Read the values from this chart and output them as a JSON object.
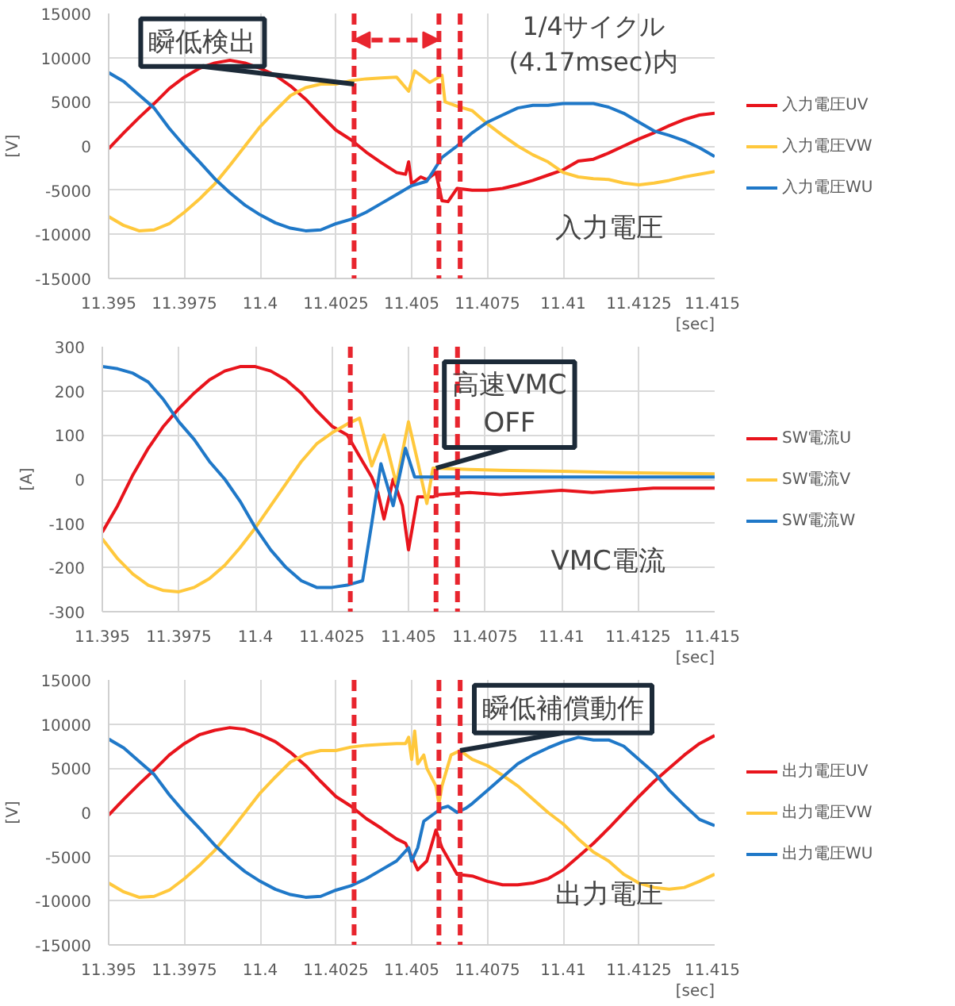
{
  "chart_data": [
    {
      "type": "line",
      "xlim": [
        11.395,
        11.415
      ],
      "ylim": [
        -15000,
        15000
      ],
      "xticks": [
        11.395,
        11.3975,
        11.4,
        11.4025,
        11.405,
        11.4075,
        11.41,
        11.4125,
        11.415
      ],
      "yticks": [
        -15000,
        -10000,
        -5000,
        0,
        5000,
        10000,
        15000
      ],
      "xlabel": "[sec]",
      "ylabel": "[V]",
      "grid": true,
      "legend": "right",
      "x": [
        11.395,
        11.3955,
        11.396,
        11.3965,
        11.397,
        11.3975,
        11.398,
        11.3985,
        11.399,
        11.3995,
        11.4,
        11.4005,
        11.401,
        11.4015,
        11.402,
        11.4025,
        11.403,
        11.4035,
        11.404,
        11.4045,
        11.405,
        11.4055,
        11.406,
        11.4065,
        11.407,
        11.4075,
        11.408,
        11.4085,
        11.409,
        11.4095,
        11.41,
        11.4105,
        11.411,
        11.4115,
        11.412,
        11.4125,
        11.413,
        11.4135,
        11.414,
        11.4145,
        11.415
      ],
      "series": [
        {
          "name": "入力電圧UV",
          "color": "#e8141c",
          "x": [
            11.395,
            11.3955,
            11.396,
            11.3965,
            11.397,
            11.3975,
            11.398,
            11.3985,
            11.399,
            11.3995,
            11.4,
            11.4005,
            11.401,
            11.4015,
            11.402,
            11.4025,
            11.403,
            11.4035,
            11.404,
            11.4045,
            11.4048,
            11.4049,
            11.405,
            11.4053,
            11.4055,
            11.4058,
            11.406,
            11.4062,
            11.4065,
            11.407,
            11.4075,
            11.408,
            11.4085,
            11.409,
            11.4095,
            11.41,
            11.4105,
            11.411,
            11.4115,
            11.412,
            11.4125,
            11.413,
            11.4135,
            11.414,
            11.4145,
            11.415
          ],
          "values": [
            -300,
            1500,
            3200,
            4800,
            6500,
            7800,
            8800,
            9400,
            9700,
            9400,
            8800,
            8000,
            6800,
            5300,
            3500,
            1800,
            700,
            -700,
            -1900,
            -3000,
            -3200,
            -1800,
            -4300,
            -3500,
            -3800,
            -3000,
            -6200,
            -6300,
            -4800,
            -5000,
            -5000,
            -4800,
            -4400,
            -3900,
            -3300,
            -2700,
            -1700,
            -1500,
            -800,
            0,
            800,
            1500,
            2300,
            3000,
            3500,
            3700
          ]
        },
        {
          "name": "入力電圧VW",
          "color": "#ffc83c",
          "x": [
            11.395,
            11.3955,
            11.396,
            11.3965,
            11.397,
            11.3975,
            11.398,
            11.3985,
            11.399,
            11.3995,
            11.4,
            11.4005,
            11.401,
            11.4015,
            11.402,
            11.4025,
            11.403,
            11.4035,
            11.404,
            11.4045,
            11.4049,
            11.4051,
            11.4053,
            11.4056,
            11.4058,
            11.406,
            11.4061,
            11.4065,
            11.407,
            11.4075,
            11.408,
            11.4085,
            11.409,
            11.4095,
            11.41,
            11.4105,
            11.411,
            11.4115,
            11.412,
            11.4125,
            11.413,
            11.4135,
            11.414,
            11.415
          ],
          "values": [
            -8000,
            -9000,
            -9600,
            -9500,
            -8800,
            -7500,
            -6000,
            -4300,
            -2200,
            0,
            2200,
            4000,
            5700,
            6600,
            7000,
            7000,
            7400,
            7600,
            7700,
            7800,
            6200,
            8500,
            8000,
            7200,
            7600,
            8000,
            5000,
            4500,
            4000,
            2500,
            1200,
            0,
            -1000,
            -1800,
            -3000,
            -3500,
            -3700,
            -3800,
            -4200,
            -4400,
            -4200,
            -3900,
            -3500,
            -2900
          ]
        },
        {
          "name": "入力電圧WU",
          "color": "#1f78c8",
          "values": [
            8300,
            7300,
            5800,
            4300,
            2000,
            0,
            -1800,
            -3700,
            -5300,
            -6700,
            -7800,
            -8700,
            -9300,
            -9600,
            -9500,
            -8800,
            -8300,
            -7500,
            -6500,
            -5500,
            -4500,
            -4000,
            -1300,
            0,
            1500,
            2700,
            3500,
            4300,
            4600,
            4600,
            4800,
            4800,
            4800,
            4400,
            3700,
            2700,
            1700,
            1200,
            600,
            -200,
            -1200
          ]
        }
      ],
      "ref_lines": [
        {
          "axis": "x",
          "value": 11.4031,
          "color": "#e8252e",
          "line_style": "dashed"
        },
        {
          "axis": "x",
          "value": 11.4059,
          "color": "#e8252e",
          "line_style": "dashed"
        },
        {
          "axis": "x",
          "value": 11.4066,
          "color": "#e8252e",
          "line_style": "dashed"
        }
      ],
      "annotations": [
        "入力電圧",
        "1/4サイクル\n(4.17msec)内",
        {
          "text": "瞬低検出",
          "x": 11.4031,
          "y": 7000
        }
      ]
    },
    {
      "type": "line",
      "xlim": [
        11.395,
        11.415
      ],
      "ylim": [
        -300,
        300
      ],
      "xticks": [
        11.395,
        11.3975,
        11.4,
        11.4025,
        11.405,
        11.4075,
        11.41,
        11.4125,
        11.415
      ],
      "yticks": [
        -300,
        -200,
        -100,
        0,
        100,
        200,
        300
      ],
      "xlabel": "[sec]",
      "ylabel": "[A]",
      "grid": true,
      "legend": "right",
      "series": [
        {
          "name": "SW電流U",
          "color": "#e8141c",
          "x": [
            11.395,
            11.3955,
            11.396,
            11.3965,
            11.397,
            11.3975,
            11.398,
            11.3985,
            11.399,
            11.3995,
            11.4,
            11.4005,
            11.401,
            11.4015,
            11.402,
            11.4025,
            11.403,
            11.4035,
            11.4038,
            11.404,
            11.4042,
            11.4045,
            11.4048,
            11.405,
            11.4053,
            11.4058,
            11.406,
            11.407,
            11.408,
            11.409,
            11.41,
            11.411,
            11.412,
            11.413,
            11.414,
            11.415
          ],
          "values": [
            -120,
            -60,
            10,
            70,
            120,
            160,
            195,
            225,
            245,
            255,
            255,
            245,
            225,
            195,
            155,
            120,
            100,
            40,
            5,
            -30,
            -90,
            0,
            -60,
            -160,
            -40,
            -40,
            -35,
            -30,
            -35,
            -30,
            -25,
            -30,
            -25,
            -20,
            -20,
            -20
          ]
        },
        {
          "name": "SW電流V",
          "color": "#ffc83c",
          "x": [
            11.395,
            11.3955,
            11.396,
            11.3965,
            11.397,
            11.3975,
            11.398,
            11.3985,
            11.399,
            11.3995,
            11.4,
            11.4005,
            11.401,
            11.4015,
            11.402,
            11.4025,
            11.403,
            11.4034,
            11.4038,
            11.4042,
            11.4046,
            11.405,
            11.4053,
            11.4056,
            11.4058,
            11.407,
            11.408,
            11.41,
            11.412,
            11.415
          ],
          "values": [
            -135,
            -180,
            -215,
            -240,
            -252,
            -255,
            -245,
            -225,
            -195,
            -155,
            -110,
            -60,
            -10,
            40,
            80,
            105,
            125,
            138,
            30,
            100,
            -10,
            130,
            40,
            -55,
            25,
            22,
            20,
            18,
            15,
            12
          ]
        },
        {
          "name": "SW電流W",
          "color": "#1f78c8",
          "x": [
            11.395,
            11.3955,
            11.396,
            11.3965,
            11.397,
            11.3975,
            11.398,
            11.3985,
            11.399,
            11.3995,
            11.4,
            11.4005,
            11.401,
            11.4015,
            11.402,
            11.4025,
            11.403,
            11.4035,
            11.4038,
            11.4041,
            11.4045,
            11.4049,
            11.4052,
            11.406,
            11.408,
            11.41,
            11.412,
            11.415
          ],
          "values": [
            255,
            250,
            240,
            220,
            180,
            130,
            90,
            40,
            0,
            -50,
            -110,
            -160,
            -200,
            -230,
            -245,
            -245,
            -240,
            -230,
            -100,
            35,
            -60,
            70,
            5,
            5,
            5,
            5,
            5,
            5
          ]
        }
      ],
      "ref_lines": [
        {
          "axis": "x",
          "value": 11.4031,
          "color": "#e8252e",
          "line_style": "dashed"
        },
        {
          "axis": "x",
          "value": 11.4059,
          "color": "#e8252e",
          "line_style": "dashed"
        },
        {
          "axis": "x",
          "value": 11.4066,
          "color": "#e8252e",
          "line_style": "dashed"
        }
      ],
      "annotations": [
        "VMC電流",
        {
          "text": "高速VMC\nOFF",
          "x": 11.4059,
          "y": 25
        }
      ]
    },
    {
      "type": "line",
      "xlim": [
        11.395,
        11.415
      ],
      "ylim": [
        -15000,
        15000
      ],
      "xticks": [
        11.395,
        11.3975,
        11.4,
        11.4025,
        11.405,
        11.4075,
        11.41,
        11.4125,
        11.415
      ],
      "yticks": [
        -15000,
        -10000,
        -5000,
        0,
        5000,
        10000,
        15000
      ],
      "xlabel": "[sec]",
      "ylabel": "[V]",
      "grid": true,
      "legend": "right",
      "series": [
        {
          "name": "出力電圧UV",
          "color": "#e8141c",
          "x": [
            11.395,
            11.3955,
            11.396,
            11.3965,
            11.397,
            11.3975,
            11.398,
            11.3985,
            11.399,
            11.3995,
            11.4,
            11.4005,
            11.401,
            11.4015,
            11.402,
            11.4025,
            11.403,
            11.4035,
            11.404,
            11.4045,
            11.4048,
            11.405,
            11.4052,
            11.4055,
            11.4058,
            11.406,
            11.4065,
            11.407,
            11.4075,
            11.408,
            11.4085,
            11.409,
            11.4095,
            11.41,
            11.4105,
            11.411,
            11.4115,
            11.412,
            11.4125,
            11.413,
            11.4135,
            11.414,
            11.4145,
            11.415
          ],
          "values": [
            -300,
            1500,
            3200,
            4800,
            6500,
            7800,
            8800,
            9300,
            9600,
            9400,
            8800,
            8000,
            6800,
            5300,
            3500,
            1800,
            700,
            -700,
            -1800,
            -3000,
            -3500,
            -5000,
            -6500,
            -5500,
            -2000,
            -4000,
            -7000,
            -7200,
            -7800,
            -8200,
            -8200,
            -8000,
            -7500,
            -6500,
            -5000,
            -3500,
            -1800,
            0,
            1800,
            3500,
            5000,
            6500,
            7800,
            8700
          ]
        },
        {
          "name": "出力電圧VW",
          "color": "#ffc83c",
          "x": [
            11.395,
            11.3955,
            11.396,
            11.3965,
            11.397,
            11.3975,
            11.398,
            11.3985,
            11.399,
            11.3995,
            11.4,
            11.4005,
            11.401,
            11.4015,
            11.402,
            11.4025,
            11.403,
            11.4035,
            11.404,
            11.4045,
            11.4048,
            11.4049,
            11.405,
            11.4051,
            11.4052,
            11.4054,
            11.4055,
            11.4058,
            11.4059,
            11.406,
            11.4063,
            11.4066,
            11.407,
            11.4075,
            11.408,
            11.4085,
            11.409,
            11.4095,
            11.41,
            11.4105,
            11.411,
            11.4115,
            11.412,
            11.4125,
            11.413,
            11.4135,
            11.414,
            11.4145,
            11.415
          ],
          "values": [
            -8000,
            -9000,
            -9600,
            -9500,
            -8800,
            -7500,
            -6000,
            -4300,
            -2200,
            0,
            2200,
            4000,
            5700,
            6600,
            7000,
            7000,
            7400,
            7600,
            7700,
            7800,
            7800,
            8500,
            6000,
            9200,
            5500,
            6500,
            5000,
            3000,
            1000,
            3000,
            6500,
            7000,
            6000,
            5300,
            4200,
            3000,
            1500,
            0,
            -1300,
            -3000,
            -4500,
            -5500,
            -7000,
            -8000,
            -8500,
            -8700,
            -8500,
            -7800,
            -7000
          ]
        },
        {
          "name": "出力電圧WU",
          "color": "#1f78c8",
          "x": [
            11.395,
            11.3955,
            11.396,
            11.3965,
            11.397,
            11.3975,
            11.398,
            11.3985,
            11.399,
            11.3995,
            11.4,
            11.4005,
            11.401,
            11.4015,
            11.402,
            11.4025,
            11.403,
            11.4035,
            11.404,
            11.4045,
            11.4049,
            11.405,
            11.4052,
            11.4054,
            11.4058,
            11.406,
            11.4062,
            11.4065,
            11.4068,
            11.407,
            11.4075,
            11.408,
            11.4085,
            11.409,
            11.4095,
            11.41,
            11.4105,
            11.411,
            11.4115,
            11.412,
            11.4125,
            11.413,
            11.4135,
            11.414,
            11.4145,
            11.415
          ],
          "values": [
            8300,
            7300,
            5800,
            4300,
            2000,
            0,
            -1800,
            -3700,
            -5300,
            -6700,
            -7800,
            -8700,
            -9300,
            -9600,
            -9500,
            -8800,
            -8300,
            -7500,
            -6500,
            -5500,
            -4000,
            -5500,
            -4000,
            -1000,
            0,
            500,
            700,
            0,
            500,
            1000,
            2500,
            4000,
            5500,
            6500,
            7300,
            8000,
            8500,
            8200,
            8200,
            7500,
            6000,
            4500,
            2500,
            800,
            -800,
            -1500
          ]
        }
      ],
      "ref_lines": [
        {
          "axis": "x",
          "value": 11.4031,
          "color": "#e8252e",
          "line_style": "dashed"
        },
        {
          "axis": "x",
          "value": 11.4059,
          "color": "#e8252e",
          "line_style": "dashed"
        },
        {
          "axis": "x",
          "value": 11.4066,
          "color": "#e8252e",
          "line_style": "dashed"
        }
      ],
      "annotations": [
        "出力電圧",
        {
          "text": "瞬低補償動作",
          "x": 11.4066,
          "y": 7000
        }
      ]
    }
  ]
}
